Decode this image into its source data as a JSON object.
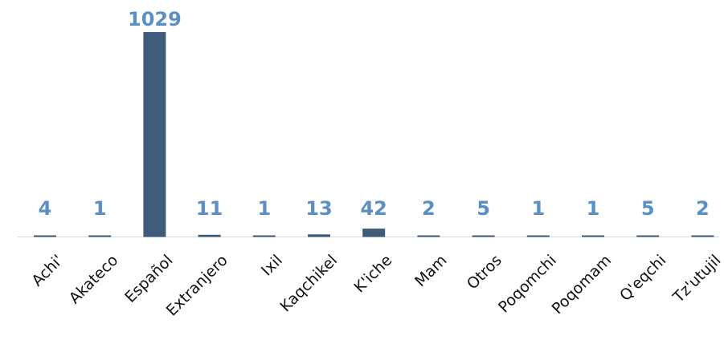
{
  "chart_data": {
    "type": "bar",
    "title": "",
    "xlabel": "",
    "ylabel": "",
    "categories": [
      "Achi'",
      "Akateco",
      "Español",
      "Extranjero",
      "Ixil",
      "Kaqchikel",
      "K'iche",
      "Mam",
      "Otros",
      "Poqomchi",
      "Poqomam",
      "Q'eqchi",
      "Tz'utujil"
    ],
    "values": [
      4,
      1,
      1029,
      11,
      1,
      13,
      42,
      2,
      5,
      1,
      1,
      5,
      2
    ],
    "ylim": [
      0,
      1029
    ],
    "grid": false,
    "legend": "none",
    "colors": {
      "bar": "#3f5b7a",
      "value_label": "#5b8ec2",
      "baseline": "#d9d9d9",
      "category_label": "#111111"
    }
  }
}
